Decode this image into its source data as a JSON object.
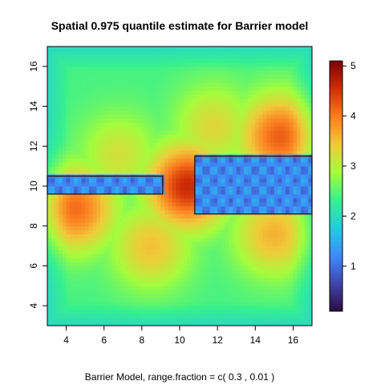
{
  "chart_data": {
    "type": "heatmap",
    "title": "Spatial 0.975 quantile estimate for Barrier model",
    "subtitle": "Barrier Model, range.fraction = c( 0.3 ,  0.01 )",
    "xlabel": "",
    "ylabel": "",
    "xlim": [
      3,
      17
    ],
    "ylim": [
      3,
      17
    ],
    "x_ticks": [
      4,
      6,
      8,
      10,
      12,
      14,
      16
    ],
    "y_ticks": [
      4,
      6,
      8,
      10,
      12,
      14,
      16
    ],
    "colorbar": {
      "ticks": [
        1,
        2,
        3,
        4,
        5
      ],
      "range": [
        0.1,
        5.1
      ],
      "colors": [
        "#2b0a3d",
        "#4145ab",
        "#3e8bf9",
        "#23cbe0",
        "#36f08f",
        "#a4fc3c",
        "#f1ca3a",
        "#fb7e21",
        "#d02f05",
        "#7a0403"
      ]
    },
    "barriers": [
      {
        "x": [
          3,
          9.1
        ],
        "y": [
          9.6,
          10.5
        ]
      },
      {
        "x": [
          10.8,
          17
        ],
        "y": [
          8.6,
          11.5
        ]
      }
    ],
    "hotspots": [
      {
        "x": 10.4,
        "y": 10.0,
        "value": 4.6
      },
      {
        "x": 15.3,
        "y": 12.5,
        "value": 4.2
      },
      {
        "x": 4.5,
        "y": 8.9,
        "value": 4.1
      },
      {
        "x": 15.0,
        "y": 7.6,
        "value": 3.6
      },
      {
        "x": 6.8,
        "y": 11.6,
        "value": 3.2
      },
      {
        "x": 8.5,
        "y": 7.0,
        "value": 3.5
      },
      {
        "x": 11.8,
        "y": 13.0,
        "value": 3.3
      }
    ],
    "background_value": 2.4,
    "barrier_value": 1.2
  }
}
